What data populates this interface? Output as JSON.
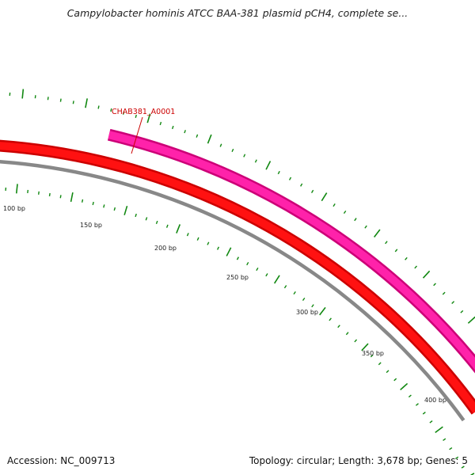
{
  "header": {
    "title": "Campylobacter hominis ATCC BAA-381 plasmid pCH4, complete se..."
  },
  "footer": {
    "accession": "Accession: NC_009713",
    "summary": "Topology: circular; Length: 3,678 bp; Genes: 5"
  },
  "plasmid_map": {
    "colors": {
      "forward_gene": "#ff1111",
      "forward_gene_edge": "#cc0000",
      "reverse_gene": "#ff22aa",
      "reverse_gene_edge": "#cc0077",
      "backbone": "#888888",
      "ticks": "#118811",
      "gene_label": "#cc0000"
    },
    "tick_labels": [
      "100 bp",
      "150 bp",
      "200 bp",
      "250 bp",
      "300 bp",
      "350 bp",
      "400 bp"
    ],
    "genes": [
      {
        "name": "CHAB381_A0001",
        "strand": "forward"
      },
      {
        "name": "",
        "strand": "reverse"
      }
    ]
  }
}
